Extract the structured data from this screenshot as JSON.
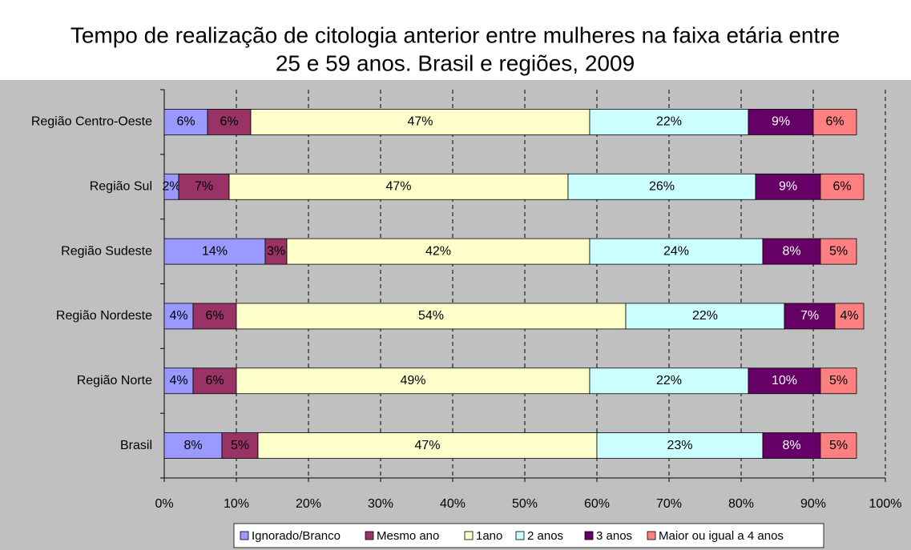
{
  "chart_data": {
    "type": "stacked-bar-horizontal",
    "title": "Tempo de realização de citologia anterior entre mulheres na faixa etária entre",
    "subtitle": "25 e 59 anos. Brasil e regiões, 2009",
    "categories": [
      "Região Centro-Oeste",
      "Região Sul",
      "Região Sudeste",
      "Região Nordeste",
      "Região Norte",
      "Brasil"
    ],
    "series": [
      {
        "name": "Ignorado/Branco",
        "color": "#9999ff",
        "values": [
          6,
          2,
          14,
          4,
          4,
          8
        ],
        "value_labels": [
          "6%",
          "2%",
          "14%",
          "4%",
          "4%",
          "8%"
        ]
      },
      {
        "name": "Mesmo ano",
        "color": "#993366",
        "values": [
          6,
          7,
          3,
          6,
          6,
          5
        ],
        "value_labels": [
          "6%",
          "7%",
          "3%",
          "6%",
          "6%",
          "5%"
        ]
      },
      {
        "name": "1ano",
        "color": "#ffffcc",
        "values": [
          47,
          47,
          42,
          54,
          49,
          47
        ],
        "value_labels": [
          "47%",
          "47%",
          "42%",
          "54%",
          "49%",
          "47%"
        ]
      },
      {
        "name": "2 anos",
        "color": "#ccffff",
        "values": [
          22,
          26,
          24,
          22,
          22,
          23
        ],
        "value_labels": [
          "22%",
          "26%",
          "24%",
          "22%",
          "22%",
          "23%"
        ]
      },
      {
        "name": "3 anos",
        "color": "#660066",
        "values": [
          9,
          9,
          8,
          7,
          10,
          8
        ],
        "value_labels": [
          "9%",
          "9%",
          "8%",
          "7%",
          "10%",
          "8%"
        ]
      },
      {
        "name": "Maior ou igual a 4 anos",
        "color": "#ff8080",
        "values": [
          6,
          6,
          5,
          4,
          5,
          5
        ],
        "value_labels": [
          "6%",
          "6%",
          "5%",
          "4%",
          "5%",
          "5%"
        ]
      }
    ],
    "xlim": [
      0,
      100
    ],
    "xticks": [
      {
        "value": 0,
        "label": "0%"
      },
      {
        "value": 10,
        "label": "10%"
      },
      {
        "value": 20,
        "label": "20%"
      },
      {
        "value": 30,
        "label": "30%"
      },
      {
        "value": 40,
        "label": "40%"
      },
      {
        "value": 50,
        "label": "50%"
      },
      {
        "value": 60,
        "label": "60%"
      },
      {
        "value": 70,
        "label": "70%"
      },
      {
        "value": 80,
        "label": "80%"
      },
      {
        "value": 90,
        "label": "90%"
      },
      {
        "value": 100,
        "label": "100%"
      }
    ],
    "grid": true,
    "legend": "bottom"
  }
}
